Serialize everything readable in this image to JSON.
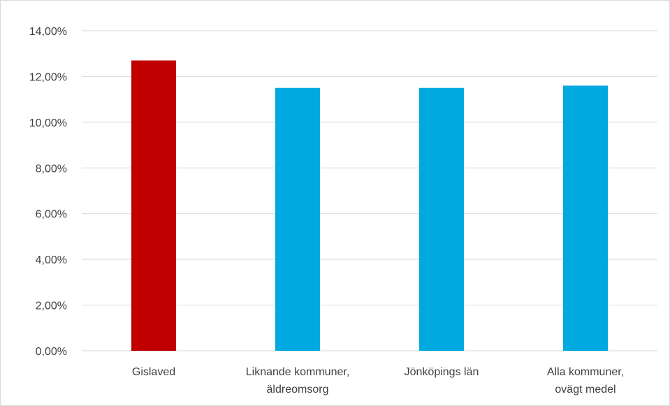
{
  "chart_data": {
    "type": "bar",
    "title": "",
    "xlabel": "",
    "ylabel": "",
    "categories": [
      [
        "Gislaved"
      ],
      [
        "Liknande kommuner,",
        "äldreomsorg"
      ],
      [
        "Jönköpings län"
      ],
      [
        "Alla kommuner,",
        "ovägt medel"
      ]
    ],
    "values": [
      12.7,
      11.5,
      11.5,
      11.6
    ],
    "bar_colors": [
      "#c00000",
      "#00a9e0",
      "#00a9e0",
      "#00a9e0"
    ],
    "ylim": [
      0,
      14
    ],
    "y_ticks": [
      0,
      2,
      4,
      6,
      8,
      10,
      12,
      14
    ],
    "y_tick_labels": [
      "0,00%",
      "2,00%",
      "4,00%",
      "6,00%",
      "8,00%",
      "10,00%",
      "12,00%",
      "14,00%"
    ],
    "grid": true,
    "legend": "none"
  }
}
